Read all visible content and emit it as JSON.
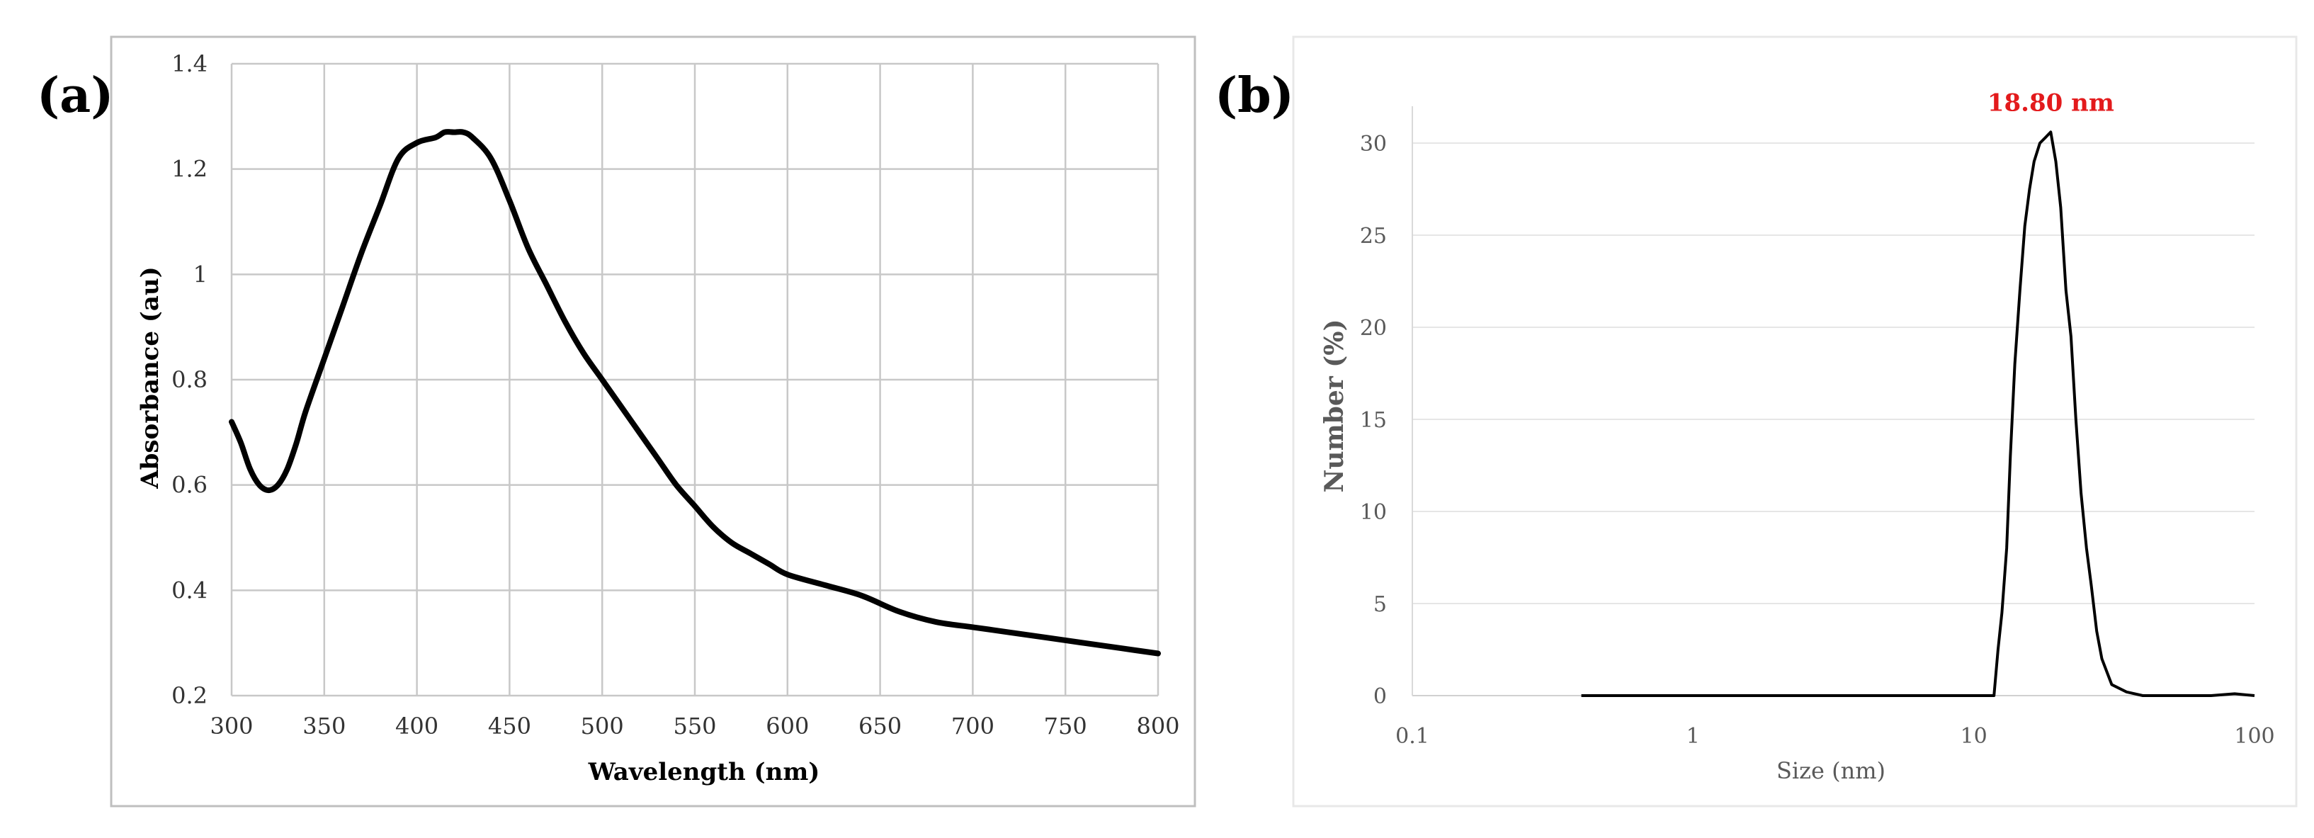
{
  "chart_data": [
    {
      "panel_label": "(a)",
      "type": "line",
      "title": "",
      "xlabel": "Wavelength (nm)",
      "ylabel": "Absorbance (au)",
      "xlim": [
        300,
        800
      ],
      "ylim": [
        0.2,
        1.4
      ],
      "x_ticks": [
        300,
        350,
        400,
        450,
        500,
        550,
        600,
        650,
        700,
        750,
        800
      ],
      "y_ticks": [
        0.2,
        0.4,
        0.6,
        0.8,
        1,
        1.2,
        1.4
      ],
      "y_tick_labels": [
        "0.2",
        "0.4",
        "0.6",
        "0.8",
        "1",
        "1.2",
        "1.4"
      ],
      "grid": true,
      "series": [
        {
          "name": "Absorbance",
          "color": "#000000",
          "x": [
            300,
            305,
            310,
            315,
            320,
            325,
            330,
            335,
            340,
            350,
            360,
            370,
            380,
            390,
            400,
            410,
            415,
            420,
            425,
            430,
            440,
            450,
            460,
            470,
            480,
            490,
            500,
            510,
            520,
            530,
            540,
            550,
            560,
            570,
            580,
            590,
            600,
            620,
            640,
            660,
            680,
            700,
            720,
            740,
            760,
            780,
            800
          ],
          "y": [
            0.72,
            0.68,
            0.63,
            0.6,
            0.59,
            0.6,
            0.63,
            0.68,
            0.74,
            0.84,
            0.94,
            1.04,
            1.13,
            1.22,
            1.25,
            1.26,
            1.27,
            1.27,
            1.27,
            1.26,
            1.22,
            1.14,
            1.05,
            0.98,
            0.91,
            0.85,
            0.8,
            0.75,
            0.7,
            0.65,
            0.6,
            0.56,
            0.52,
            0.49,
            0.47,
            0.45,
            0.43,
            0.41,
            0.39,
            0.36,
            0.34,
            0.33,
            0.32,
            0.31,
            0.3,
            0.29,
            0.28
          ]
        }
      ]
    },
    {
      "panel_label": "(b)",
      "type": "line",
      "title": "",
      "xlabel": "Size (nm)",
      "ylabel": "Number (%)",
      "x_scale": "log",
      "xlim": [
        0.1,
        100
      ],
      "ylim": [
        0,
        32
      ],
      "x_ticks": [
        0.1,
        1,
        10,
        100
      ],
      "x_tick_labels": [
        "0.1",
        "1",
        "10",
        "100"
      ],
      "y_ticks": [
        0,
        5,
        10,
        15,
        20,
        25,
        30
      ],
      "grid": true,
      "annotation": {
        "text": "18.80 nm",
        "x": 18.8,
        "y": 30.6,
        "color": "#e31a1c"
      },
      "series": [
        {
          "name": "Number",
          "color": "#000000",
          "x": [
            0.4,
            1,
            5,
            11.8,
            12.2,
            12.6,
            13.1,
            13.5,
            14,
            14.6,
            15.2,
            15.8,
            16.4,
            17.2,
            18,
            18.8,
            19.6,
            20.4,
            21.3,
            22.2,
            23.1,
            24.1,
            25.2,
            26.2,
            27.4,
            28.6,
            31,
            35,
            40,
            50,
            70,
            85,
            100
          ],
          "y": [
            0,
            0,
            0,
            0,
            2.5,
            4.5,
            8,
            13,
            18,
            22,
            25.5,
            27.5,
            29,
            30,
            30.3,
            30.6,
            29,
            26.5,
            22,
            19.5,
            15,
            11,
            8,
            6,
            3.5,
            2,
            0.6,
            0.2,
            0,
            0,
            0,
            0.1,
            0
          ]
        }
      ]
    }
  ]
}
